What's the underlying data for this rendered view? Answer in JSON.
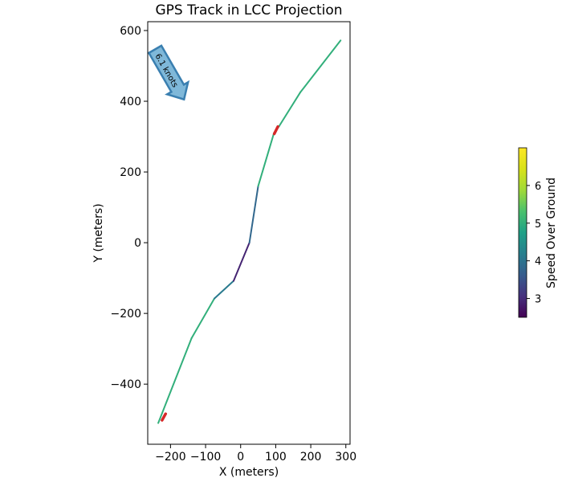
{
  "chart_data": {
    "type": "line",
    "title": "GPS Track in LCC Projection",
    "xlabel": "X (meters)",
    "ylabel": "Y (meters)",
    "xlim": [
      -265,
      312
    ],
    "ylim": [
      -570,
      625
    ],
    "xticks": [
      -200,
      -100,
      0,
      100,
      200,
      300
    ],
    "yticks": [
      -400,
      -200,
      0,
      200,
      400,
      600
    ],
    "grid": false,
    "track": {
      "x": [
        -235,
        -140,
        -75,
        -20,
        25,
        50,
        95,
        110,
        170,
        285
      ],
      "y": [
        -510,
        -270,
        -158,
        -108,
        0,
        160,
        310,
        330,
        425,
        572
      ],
      "speed": [
        5.0,
        5.0,
        5.0,
        3.2,
        2.6,
        5.0,
        5.0,
        5.0,
        5.0,
        5.0
      ]
    },
    "markers": [
      {
        "x": [
          -224,
          -214
        ],
        "y": [
          -502,
          -484
        ],
        "color": "#d62728"
      },
      {
        "x": [
          96,
          106
        ],
        "y": [
          308,
          328
        ],
        "color": "#d62728"
      }
    ],
    "annotation": {
      "text": "6.1 knots",
      "x": -205,
      "y": 480,
      "angle_deg": -60,
      "color": "#7fb8d9"
    },
    "colorbar": {
      "label": "Speed Over Ground",
      "colormap": "viridis",
      "min": 2.5,
      "max": 7.0,
      "ticks": [
        3,
        4,
        5,
        6
      ]
    }
  }
}
